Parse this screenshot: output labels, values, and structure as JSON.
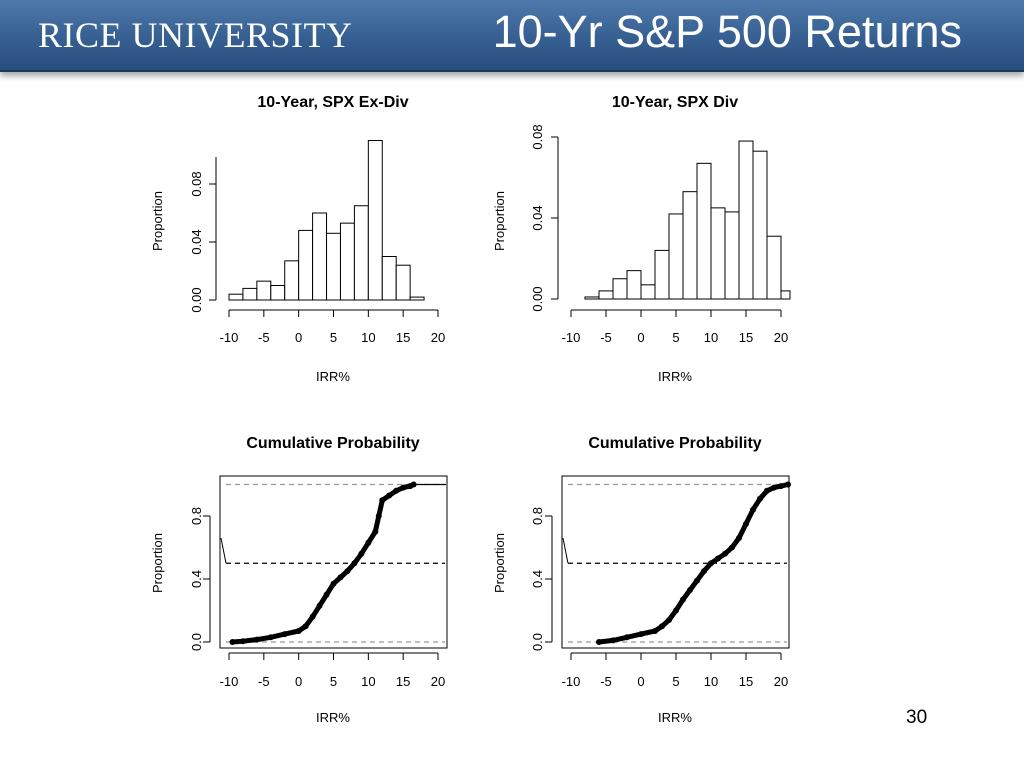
{
  "header": {
    "logo_text": "RICE UNIVERSITY",
    "title": "10-Yr S&P 500 Returns"
  },
  "page_number": "30",
  "colors": {
    "header_top": "#4f79ab",
    "header_bottom": "#274d7d",
    "bar_fill": "#ffffff",
    "ink": "#000000",
    "reference_line": "#9a9a9a"
  },
  "chart_data": [
    {
      "type": "bar",
      "title": "10-Year, SPX Ex-Div",
      "xlabel": "IRR%",
      "ylabel": "Proportion",
      "xlim": [
        -10,
        20
      ],
      "ylim": [
        0,
        0.11
      ],
      "xticks": [
        "-10",
        "-5",
        "0",
        "5",
        "10",
        "15",
        "20"
      ],
      "yticks": [
        "0.00",
        "0.04",
        "0.08"
      ],
      "grid": false,
      "bins": [
        {
          "x0": -10,
          "x1": -8,
          "value": 0.004
        },
        {
          "x0": -8,
          "x1": -6,
          "value": 0.008
        },
        {
          "x0": -6,
          "x1": -4,
          "value": 0.013
        },
        {
          "x0": -4,
          "x1": -2,
          "value": 0.01
        },
        {
          "x0": -2,
          "x1": 0,
          "value": 0.027
        },
        {
          "x0": 0,
          "x1": 2,
          "value": 0.048
        },
        {
          "x0": 2,
          "x1": 4,
          "value": 0.06
        },
        {
          "x0": 4,
          "x1": 6,
          "value": 0.046
        },
        {
          "x0": 6,
          "x1": 8,
          "value": 0.053
        },
        {
          "x0": 8,
          "x1": 10,
          "value": 0.065
        },
        {
          "x0": 10,
          "x1": 12,
          "value": 0.11
        },
        {
          "x0": 12,
          "x1": 14,
          "value": 0.03
        },
        {
          "x0": 14,
          "x1": 16,
          "value": 0.024
        },
        {
          "x0": 16,
          "x1": 18,
          "value": 0.002
        }
      ]
    },
    {
      "type": "bar",
      "title": "10-Year, SPX Div",
      "xlabel": "IRR%",
      "ylabel": "Proportion",
      "xlim": [
        -10,
        20
      ],
      "ylim": [
        0,
        0.08
      ],
      "xticks": [
        "-10",
        "-5",
        "0",
        "5",
        "10",
        "15",
        "20"
      ],
      "yticks": [
        "0.00",
        "0.04",
        "0.08"
      ],
      "grid": false,
      "bins": [
        {
          "x0": -8,
          "x1": -6,
          "value": 0.001
        },
        {
          "x0": -6,
          "x1": -4,
          "value": 0.004
        },
        {
          "x0": -4,
          "x1": -2,
          "value": 0.01
        },
        {
          "x0": -2,
          "x1": 0,
          "value": 0.014
        },
        {
          "x0": 0,
          "x1": 2,
          "value": 0.007
        },
        {
          "x0": 2,
          "x1": 4,
          "value": 0.024
        },
        {
          "x0": 4,
          "x1": 6,
          "value": 0.042
        },
        {
          "x0": 6,
          "x1": 8,
          "value": 0.053
        },
        {
          "x0": 8,
          "x1": 10,
          "value": 0.067
        },
        {
          "x0": 10,
          "x1": 12,
          "value": 0.045
        },
        {
          "x0": 12,
          "x1": 14,
          "value": 0.043
        },
        {
          "x0": 14,
          "x1": 16,
          "value": 0.078
        },
        {
          "x0": 16,
          "x1": 18,
          "value": 0.073
        },
        {
          "x0": 18,
          "x1": 20,
          "value": 0.031
        },
        {
          "x0": 20,
          "x1": 22,
          "value": 0.004
        }
      ]
    },
    {
      "type": "line",
      "title": "Cumulative Probability",
      "xlabel": "IRR%",
      "ylabel": "Proportion",
      "xlim": [
        -11.5,
        21
      ],
      "ylim": [
        0,
        1
      ],
      "xticks": [
        "-10",
        "-5",
        "0",
        "5",
        "10",
        "15",
        "20"
      ],
      "yticks": [
        "0.0",
        "0.4",
        "0.8"
      ],
      "grid": false,
      "reference_lines": [
        {
          "y": 0.5,
          "style": "dashed",
          "color": "#000000"
        },
        {
          "y": 0,
          "style": "dashed",
          "color": "#9a9a9a"
        },
        {
          "y": 1,
          "style": "dashed",
          "color": "#9a9a9a"
        }
      ],
      "curve": {
        "x": [
          -9.5,
          -8,
          -6,
          -4,
          -2,
          0,
          1,
          2,
          3,
          4,
          5,
          6,
          7,
          8,
          9,
          10,
          11,
          11.5,
          12,
          13,
          14,
          15,
          16,
          16.5
        ],
        "y": [
          0.0,
          0.005,
          0.015,
          0.03,
          0.05,
          0.07,
          0.1,
          0.16,
          0.23,
          0.3,
          0.37,
          0.41,
          0.45,
          0.5,
          0.56,
          0.63,
          0.7,
          0.8,
          0.9,
          0.93,
          0.96,
          0.98,
          0.99,
          1.0
        ]
      }
    },
    {
      "type": "line",
      "title": "Cumulative Probability",
      "xlabel": "IRR%",
      "ylabel": "Proportion",
      "xlim": [
        -11.5,
        21
      ],
      "ylim": [
        0,
        1
      ],
      "xticks": [
        "-10",
        "-5",
        "0",
        "5",
        "10",
        "15",
        "20"
      ],
      "yticks": [
        "0.0",
        "0.4",
        "0.8"
      ],
      "grid": false,
      "reference_lines": [
        {
          "y": 0.5,
          "style": "dashed",
          "color": "#000000"
        },
        {
          "y": 0,
          "style": "dashed",
          "color": "#9a9a9a"
        },
        {
          "y": 1,
          "style": "dashed",
          "color": "#9a9a9a"
        }
      ],
      "curve": {
        "x": [
          -6,
          -4,
          -2,
          0,
          2,
          3,
          4,
          5,
          6,
          7,
          8,
          9,
          10,
          11,
          12,
          13,
          14,
          15,
          16,
          17,
          18,
          19,
          20,
          21
        ],
        "y": [
          0.0,
          0.01,
          0.03,
          0.05,
          0.07,
          0.1,
          0.14,
          0.2,
          0.27,
          0.33,
          0.39,
          0.45,
          0.5,
          0.53,
          0.56,
          0.6,
          0.66,
          0.75,
          0.84,
          0.91,
          0.96,
          0.98,
          0.99,
          1.0
        ]
      }
    }
  ]
}
